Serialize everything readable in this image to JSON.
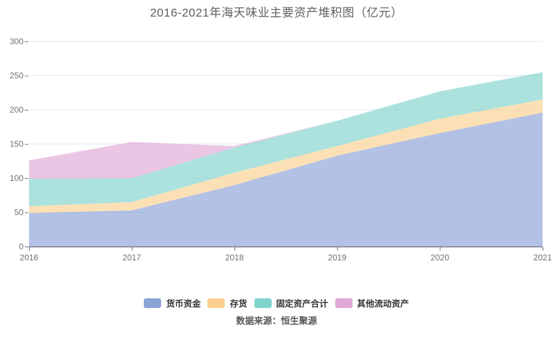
{
  "chart_data": {
    "type": "area",
    "stacked": true,
    "title": "2016-2021年海天味业主要资产堆积图（亿元）",
    "x": [
      "2016",
      "2017",
      "2018",
      "2019",
      "2020",
      "2021"
    ],
    "series": [
      {
        "name": "货币资金",
        "color": "#8AA2D5",
        "values": [
          49,
          53,
          90,
          133,
          166,
          196
        ]
      },
      {
        "name": "存货",
        "color": "#FACF8E",
        "values": [
          10,
          12,
          18,
          14,
          21,
          19
        ]
      },
      {
        "name": "固定资产合计",
        "color": "#7FD3CB",
        "values": [
          40,
          35,
          37,
          37,
          40,
          40
        ]
      },
      {
        "name": "其他流动资产",
        "color": "#E1A8D6",
        "values": [
          27,
          53,
          2,
          0,
          0,
          0
        ]
      }
    ],
    "xlabel": "",
    "ylabel": "",
    "ylim": [
      0,
      300
    ],
    "yticks": [
      0,
      50,
      100,
      150,
      200,
      250,
      300
    ],
    "grid": true,
    "legend_position": "bottom",
    "area_opacity": 0.65
  },
  "footer": {
    "source": "数据来源：恒生聚源"
  },
  "colors": {
    "background": "#FFFFFF",
    "grid": "#E0E6F1",
    "axis": "#6E7079",
    "tick_label": "#6E7079",
    "title": "#5E5F63",
    "legend_text": "#333333",
    "footer_text": "#595959"
  }
}
